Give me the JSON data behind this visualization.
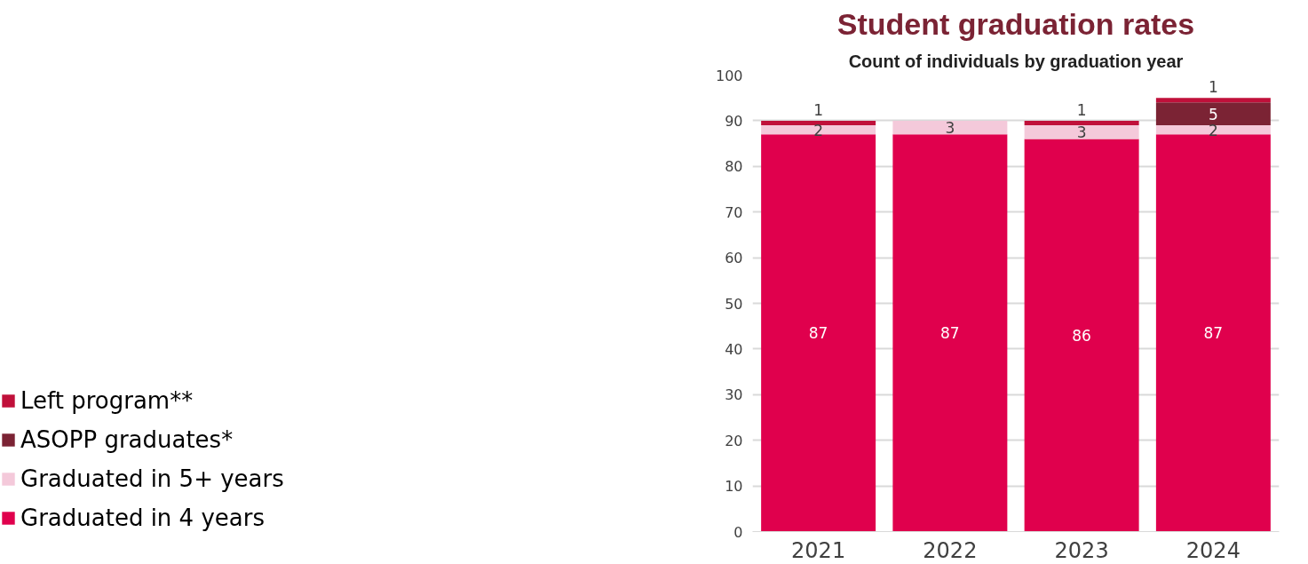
{
  "chart_data": {
    "type": "bar",
    "stacked": true,
    "title": "Student graduation rates",
    "subtitle": "Count of individuals by graduation year",
    "categories": [
      "2021",
      "2022",
      "2023",
      "2024"
    ],
    "series": [
      {
        "name": "Graduated in 4 years",
        "color": "#e0004d",
        "values": [
          87,
          87,
          86,
          87
        ]
      },
      {
        "name": "Graduated in 5+ years",
        "color": "#f4c9da",
        "values": [
          2,
          3,
          3,
          2
        ]
      },
      {
        "name": "ASOPP graduates*",
        "color": "#7b2334",
        "values": [
          null,
          null,
          null,
          5
        ]
      },
      {
        "name": "Left program**",
        "color": "#c0103a",
        "values": [
          1,
          null,
          1,
          1
        ]
      }
    ],
    "ylim": [
      0,
      100
    ],
    "yticks": [
      0,
      10,
      20,
      30,
      40,
      50,
      60,
      70,
      80,
      90,
      100
    ],
    "grid": "y",
    "legend": "left",
    "data_labels": true
  }
}
